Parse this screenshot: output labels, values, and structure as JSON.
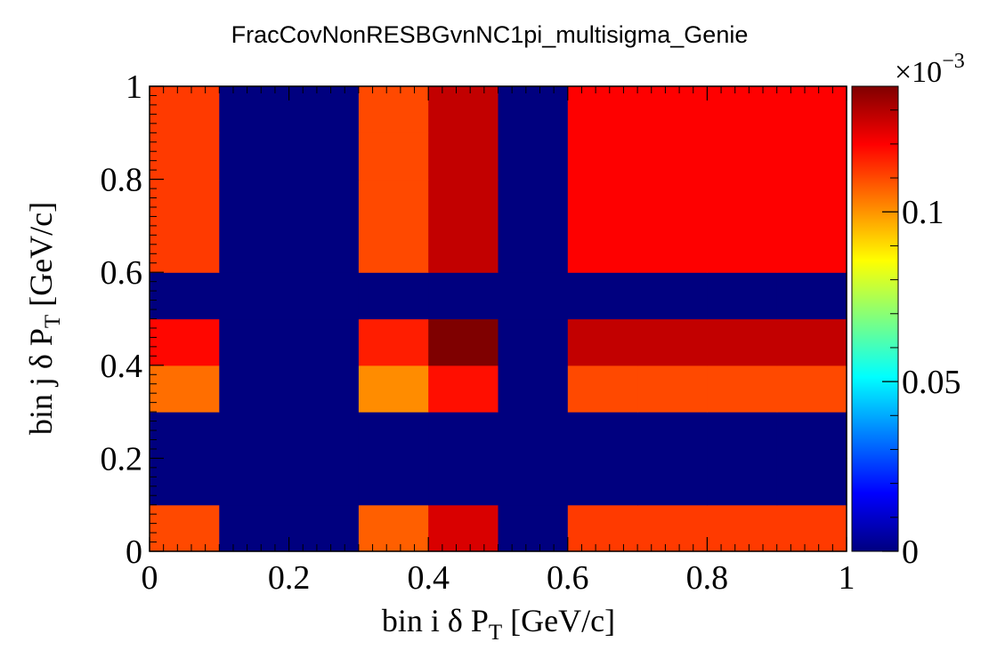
{
  "chart_data": {
    "type": "heatmap",
    "title": "FracCovNonRESBGvnNC1pi_multisigma_Genie",
    "xlabel": {
      "main": "bin i  δ P",
      "sub": "T",
      "unit": " [GeV/c]"
    },
    "ylabel": {
      "main": "bin j  δ P",
      "sub": "T",
      "unit": " [GeV/c]"
    },
    "x_edges": [
      0,
      0.1,
      0.2,
      0.3,
      0.4,
      0.5,
      0.6,
      0.7,
      0.8,
      0.9,
      1.0
    ],
    "y_edges": [
      0,
      0.1,
      0.2,
      0.3,
      0.4,
      0.5,
      0.6,
      0.7,
      0.8,
      0.9,
      1.0
    ],
    "xlim": [
      0,
      1
    ],
    "ylim": [
      0,
      1
    ],
    "x_ticks": [
      0,
      0.2,
      0.4,
      0.6,
      0.8,
      1
    ],
    "x_tick_labels": [
      "0",
      "0.2",
      "0.4",
      "0.6",
      "0.8",
      "1"
    ],
    "y_ticks": [
      0,
      0.2,
      0.4,
      0.6,
      0.8,
      1
    ],
    "y_tick_labels": [
      "0",
      "0.2",
      "0.4",
      "0.6",
      "0.8",
      "1"
    ],
    "z_range": [
      0,
      0.000137
    ],
    "z_scale_label": "×10",
    "z_scale_exponent": "−3",
    "z_ticks": [
      0,
      5e-05,
      0.0001
    ],
    "z_tick_labels": [
      "0",
      "0.05",
      "0.1"
    ],
    "palette": [
      "#00007f",
      "#0000ff",
      "#007fff",
      "#00ffff",
      "#7fff7f",
      "#ffff00",
      "#ff7f00",
      "#ff0000",
      "#7f0000"
    ],
    "values": [
      [
        0.00011,
        0,
        0,
        0.000107,
        0.000125,
        0,
        0.000112,
        0.000112,
        0.000112,
        0.000112
      ],
      [
        0,
        0,
        0,
        0,
        0,
        0,
        0,
        0,
        0,
        0
      ],
      [
        0,
        0,
        0,
        0,
        0,
        0,
        0,
        0,
        0,
        0
      ],
      [
        0.000105,
        0,
        0,
        0.000101,
        0.000118,
        0,
        0.00011,
        0.00011,
        0.00011,
        0.00011
      ],
      [
        0.000119,
        0,
        0,
        0.000116,
        0.000137,
        0,
        0.000128,
        0.000128,
        0.000128,
        0.000128
      ],
      [
        0,
        0,
        0,
        0,
        0,
        0,
        0,
        0,
        0,
        0
      ],
      [
        0.000112,
        0,
        0,
        0.00011,
        0.000128,
        0,
        0.00012,
        0.00012,
        0.00012,
        0.00012
      ],
      [
        0.000112,
        0,
        0,
        0.00011,
        0.000128,
        0,
        0.00012,
        0.00012,
        0.00012,
        0.00012
      ],
      [
        0.000112,
        0,
        0,
        0.00011,
        0.000128,
        0,
        0.00012,
        0.00012,
        0.00012,
        0.00012
      ],
      [
        0.000112,
        0,
        0,
        0.00011,
        0.000128,
        0,
        0.00012,
        0.00012,
        0.00012,
        0.00012
      ]
    ]
  }
}
